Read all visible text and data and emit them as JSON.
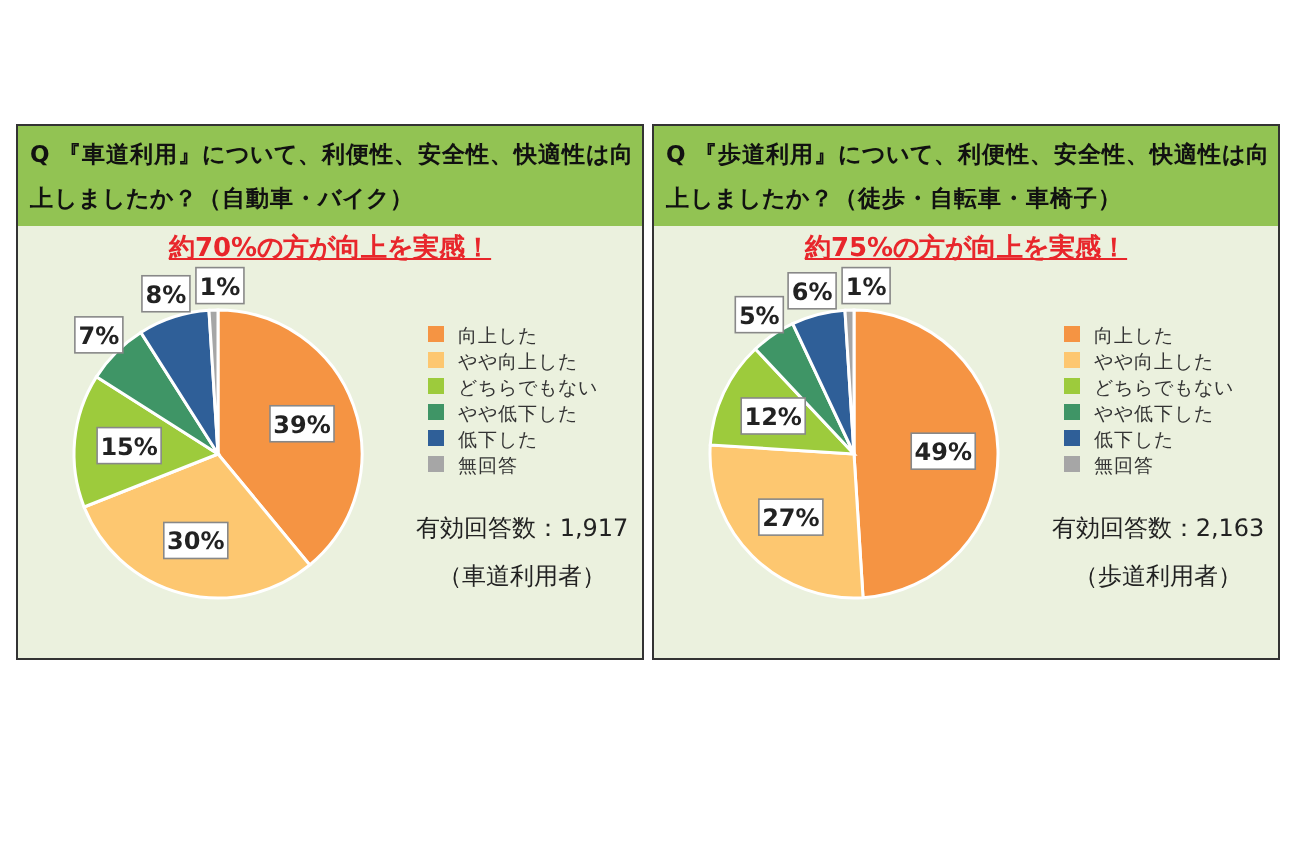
{
  "chart_data": [
    {
      "type": "pie",
      "title": "Q 『車道利用』について、利便性、安全性、快適性は向上しましたか？（自動車・バイク）",
      "subtitle": "約70%の方が向上を実感！",
      "categories": [
        "向上した",
        "やや向上した",
        "どちらでもない",
        "やや低下した",
        "低下した",
        "無回答"
      ],
      "values": [
        39,
        30,
        15,
        7,
        8,
        1
      ],
      "value_labels": [
        "39%",
        "30%",
        "15%",
        "7%",
        "8%",
        "1%"
      ],
      "colors": [
        "#f59443",
        "#fdc770",
        "#9dcb3c",
        "#3f9566",
        "#2f5f98",
        "#a6a6a6"
      ],
      "legend": "right",
      "annotations": [
        "有効回答数：1,917",
        "（車道利用者）"
      ]
    },
    {
      "type": "pie",
      "title": "Q 『歩道利用』について、利便性、安全性、快適性は向上しましたか？（徒歩・自転車・車椅子）",
      "subtitle": "約75%の方が向上を実感！",
      "categories": [
        "向上した",
        "やや向上した",
        "どちらでもない",
        "やや低下した",
        "低下した",
        "無回答"
      ],
      "values": [
        49,
        27,
        12,
        5,
        6,
        1
      ],
      "value_labels": [
        "49%",
        "27%",
        "12%",
        "5%",
        "6%",
        "1%"
      ],
      "colors": [
        "#f59443",
        "#fdc770",
        "#9dcb3c",
        "#3f9566",
        "#2f5f98",
        "#a6a6a6"
      ],
      "legend": "right",
      "annotations": [
        "有効回答数：2,163",
        "（歩道利用者）"
      ]
    }
  ]
}
